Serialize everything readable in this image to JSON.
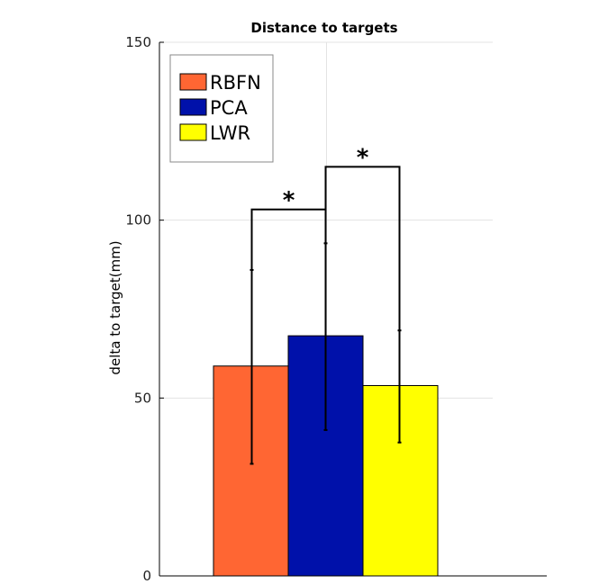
{
  "chart_data": {
    "type": "bar",
    "title": "Distance to targets",
    "xlabel": "",
    "ylabel": "delta to target(mm)",
    "ylim": [
      0,
      150
    ],
    "yticks": [
      0,
      50,
      100,
      150
    ],
    "grid": true,
    "legend_position": "top-left",
    "series": [
      {
        "name": "RBFN",
        "value": 59,
        "err_low": 31.5,
        "err_high": 86,
        "color": "#ff6633"
      },
      {
        "name": "PCA",
        "value": 67.5,
        "err_low": 41,
        "err_high": 93.5,
        "color": "#0011aa"
      },
      {
        "name": "LWR",
        "value": 53.5,
        "err_low": 37.5,
        "err_high": 69,
        "color": "#ffff00"
      }
    ],
    "significance": [
      {
        "from": 0,
        "to": 1,
        "y": 103,
        "label": "*"
      },
      {
        "from": 1,
        "to": 2,
        "y": 115,
        "label": "*"
      }
    ]
  }
}
